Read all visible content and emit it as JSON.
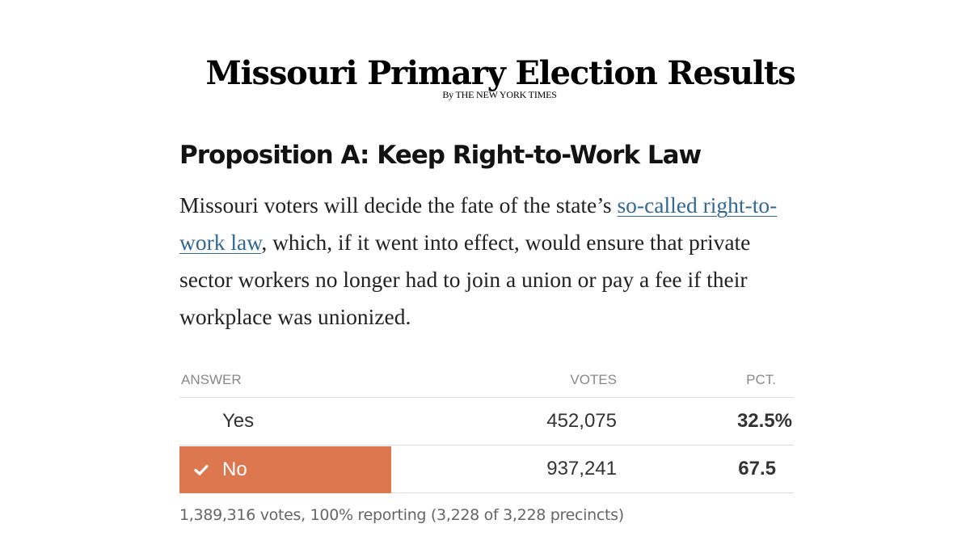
{
  "header": {
    "title": "Missouri Primary Election Results",
    "byline_prefix": "By",
    "byline_org": "The New York Times"
  },
  "proposition": {
    "title": "Proposition A: Keep Right-to-Work Law",
    "description": {
      "before": "Missouri voters will decide the fate of the state’s ",
      "link_text": "so-called right-to-work law",
      "after": ", which, if it went into effect, would ensure that private sector workers no longer had to join a union or pay a fee if their workplace was unionized."
    }
  },
  "results": {
    "headers": {
      "answer": "Answer",
      "votes": "Votes",
      "pct": "Pct."
    },
    "rows": [
      {
        "answer": "Yes",
        "votes": "452,075",
        "pct": "32.5",
        "pct_sign": "%",
        "winner": false
      },
      {
        "answer": "No",
        "votes": "937,241",
        "pct": "67.5",
        "pct_sign": "",
        "winner": true
      }
    ],
    "summary": "1,389,316 votes, 100% reporting (3,228 of 3,228 precincts)"
  },
  "colors": {
    "winner_background": "#dc7750",
    "link": "#326891",
    "muted_text": "#888888"
  },
  "icons": {
    "winner_marker": "checkmark-icon"
  }
}
